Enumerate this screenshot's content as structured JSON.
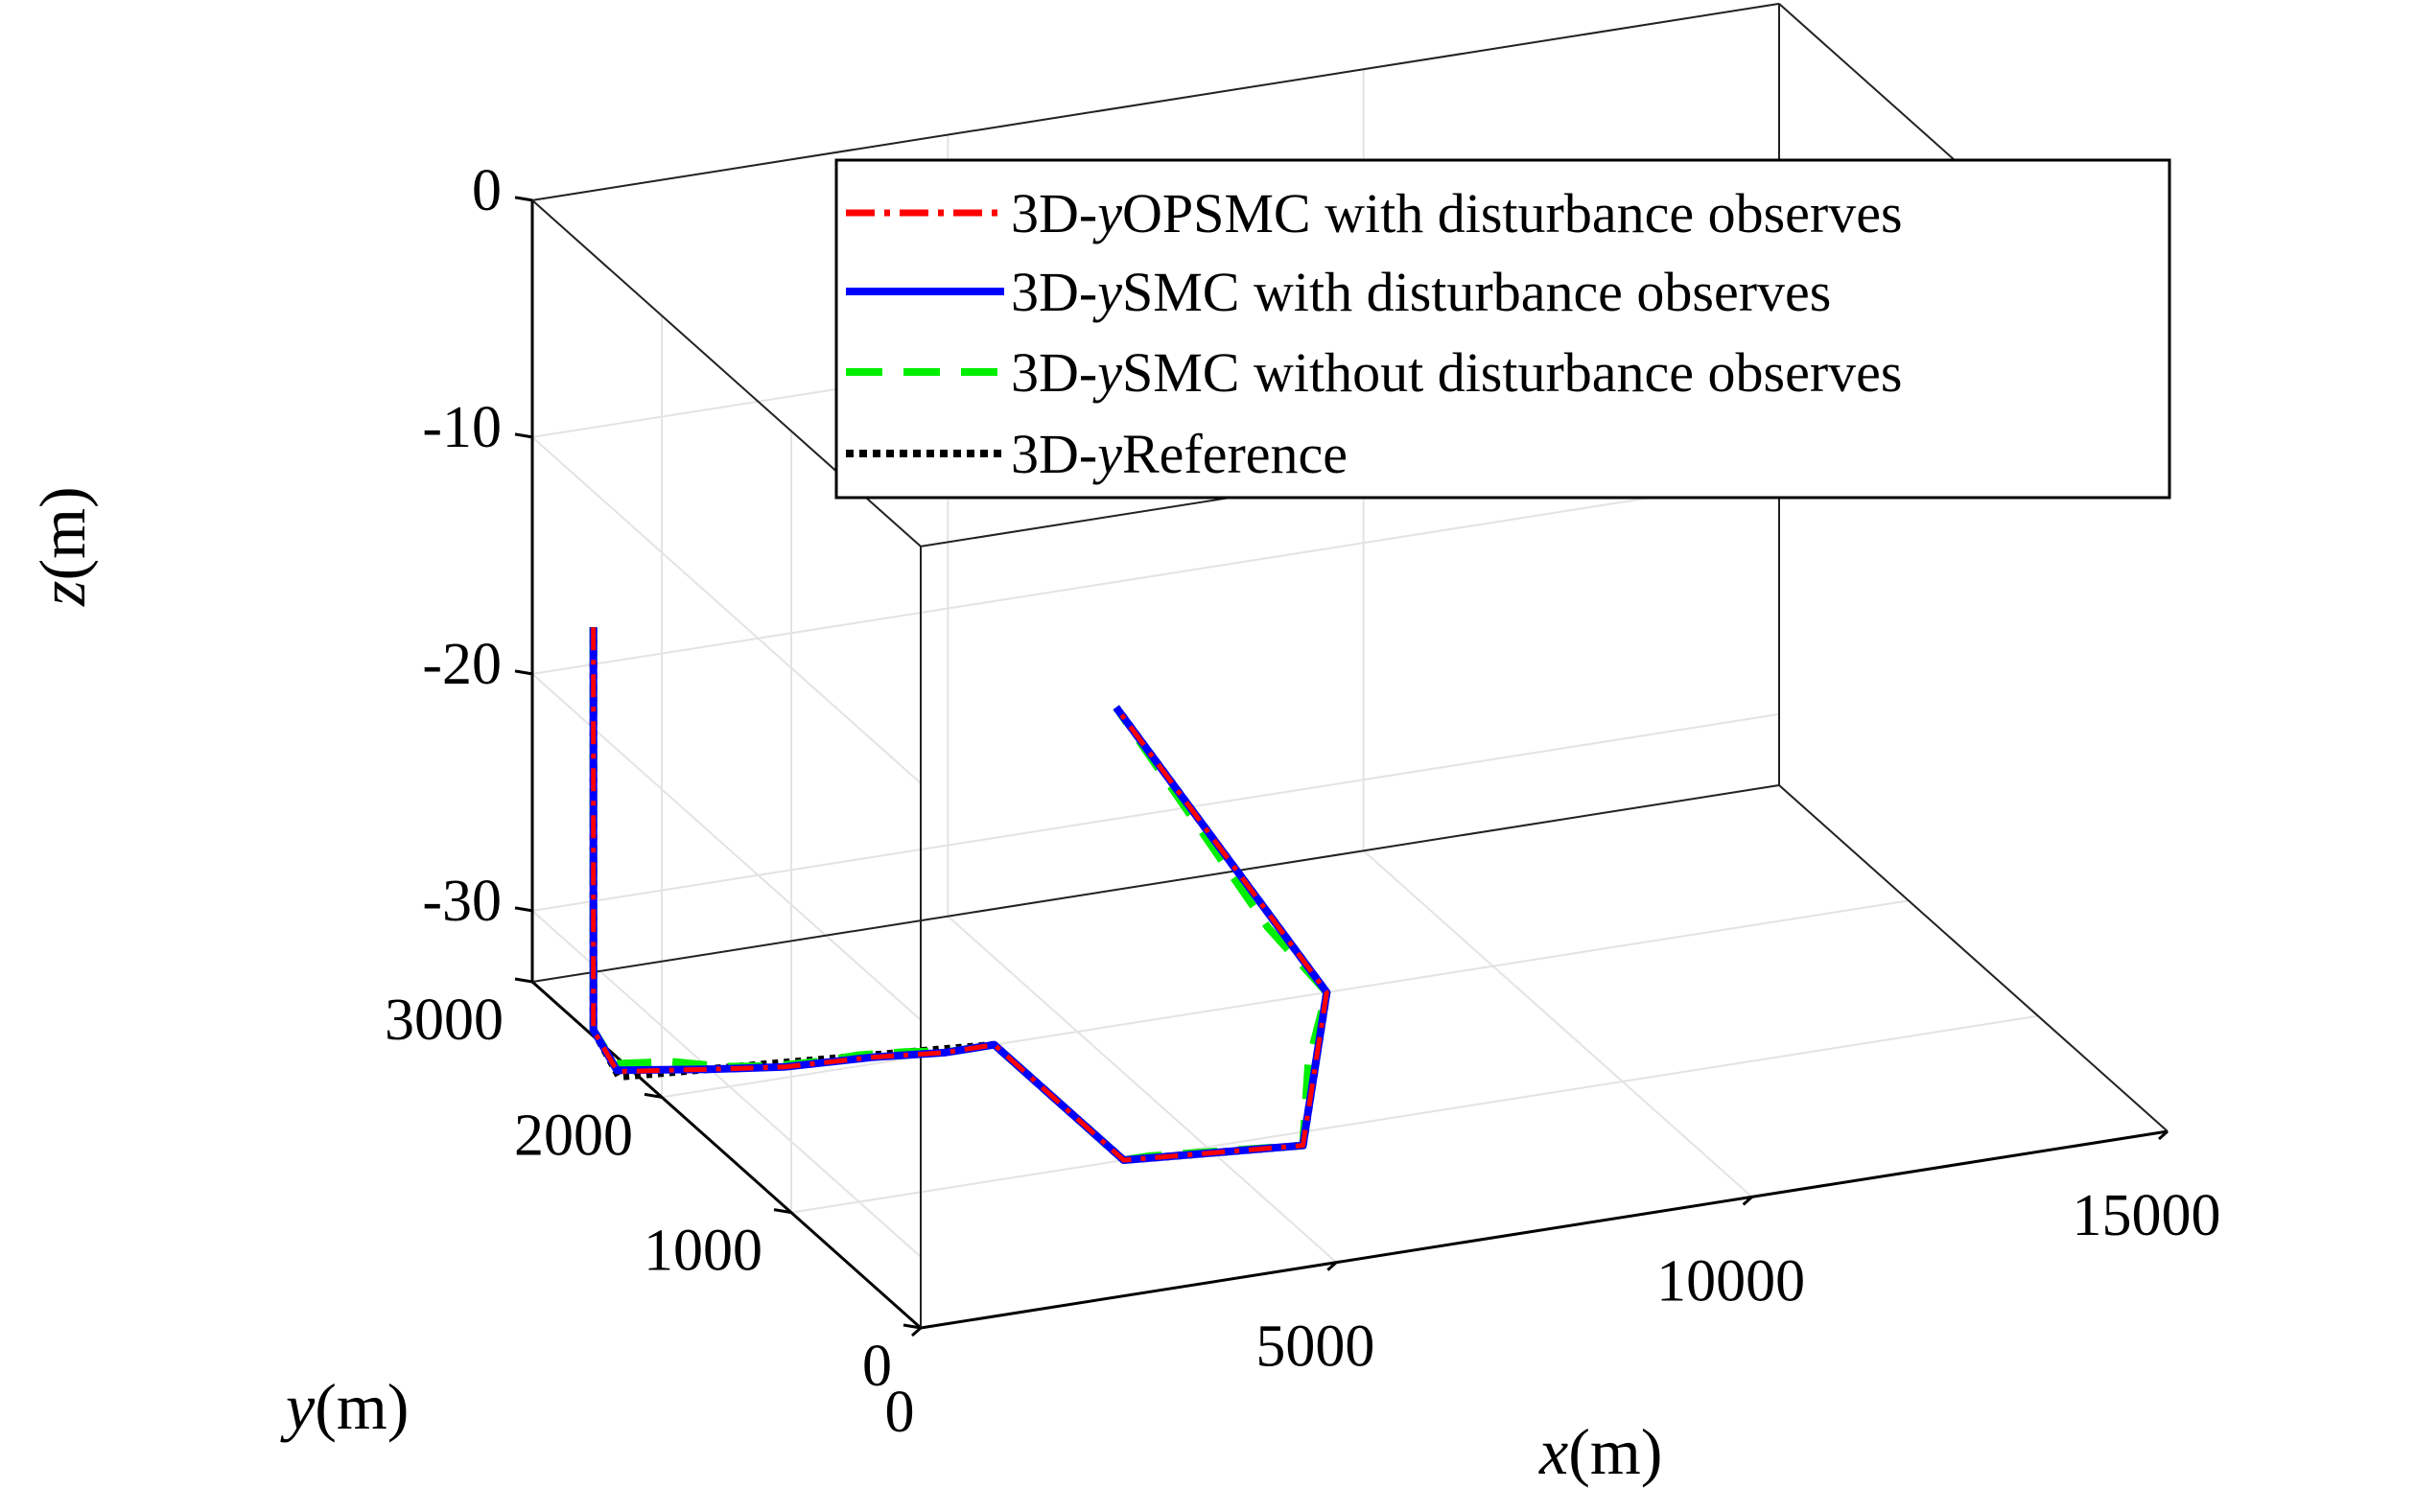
{
  "chart_data": {
    "type": "line3d",
    "view": "3D perspective, azimuth approx -37°, elevation approx 30°",
    "axes": {
      "x": {
        "label_var": "x",
        "label_unit": "(m)",
        "range": [
          0,
          15000
        ],
        "ticks": [
          0,
          5000,
          10000,
          15000
        ],
        "tick_labels": [
          "0",
          "5000",
          "10000",
          "15000"
        ]
      },
      "y": {
        "label_var": "y",
        "label_unit": "(m)",
        "range": [
          0,
          3000
        ],
        "ticks": [
          0,
          1000,
          2000,
          3000
        ],
        "tick_labels": [
          "0",
          "1000",
          "2000",
          "3000"
        ]
      },
      "z": {
        "label_var": "z",
        "label_unit": "(m)",
        "range": [
          -33,
          0
        ],
        "ticks": [
          0,
          -10,
          -20,
          -30
        ],
        "tick_labels": [
          "0",
          "-10",
          "-20",
          "-30"
        ]
      }
    },
    "grid": true,
    "box": true,
    "legend": {
      "location": "top-right",
      "entries": [
        {
          "prefix": "3D-",
          "var": "y",
          "suffix": "OPSMC with disturbance observes",
          "color": "#ff0000",
          "style": "dash-dot"
        },
        {
          "prefix": "3D-",
          "var": "y",
          "suffix": "SMC with disturbance observes",
          "color": "#0000ff",
          "style": "solid"
        },
        {
          "prefix": "3D-",
          "var": "y",
          "suffix": "SMC without disturbance observes",
          "color": "#00ee00",
          "style": "dashed"
        },
        {
          "prefix": "3D-",
          "var": "y",
          "suffix": "Reference",
          "color": "#000000",
          "style": "dotted"
        }
      ]
    },
    "series": [
      {
        "name": "3D-yReference",
        "color": "#000000",
        "points": [
          [
            -200,
            2400,
            -15
          ],
          [
            -200,
            2400,
            -32
          ],
          [
            -200,
            2200,
            -33
          ],
          [
            4000,
            2000,
            -33
          ],
          [
            4000,
            1000,
            -33
          ],
          [
            6000,
            900,
            -33
          ],
          [
            8000,
            2000,
            -33
          ],
          [
            6400,
            2600,
            -23
          ]
        ]
      },
      {
        "name": "3D-ySMC without disturbance observes",
        "color": "#00ee00",
        "points": [
          [
            -200,
            2400,
            -15
          ],
          [
            -200,
            2400,
            -32
          ],
          [
            -100,
            2300,
            -33
          ],
          [
            500,
            2250,
            -33
          ],
          [
            1000,
            2150,
            -33
          ],
          [
            1500,
            2100,
            -33
          ],
          [
            2000,
            2080,
            -33
          ],
          [
            2500,
            2080,
            -33
          ],
          [
            3000,
            2050,
            -33
          ],
          [
            3500,
            2000,
            -33
          ],
          [
            4000,
            2000,
            -33
          ],
          [
            4000,
            1000,
            -33
          ],
          [
            4300,
            1000,
            -33
          ],
          [
            6000,
            900,
            -33
          ],
          [
            7000,
            1500,
            -33
          ],
          [
            8000,
            2000,
            -33
          ],
          [
            7600,
            2200,
            -31
          ],
          [
            6700,
            2500,
            -25
          ],
          [
            6400,
            2600,
            -23
          ]
        ]
      },
      {
        "name": "3D-ySMC with disturbance observes",
        "color": "#0000ff",
        "points": [
          [
            -200,
            2400,
            -15
          ],
          [
            -200,
            2400,
            -32
          ],
          [
            -150,
            2250,
            -33
          ],
          [
            800,
            2150,
            -33
          ],
          [
            1600,
            2080,
            -33
          ],
          [
            2600,
            2050,
            -33
          ],
          [
            3400,
            2000,
            -33
          ],
          [
            4000,
            2000,
            -33
          ],
          [
            4000,
            1000,
            -33
          ],
          [
            6000,
            900,
            -33
          ],
          [
            8000,
            2000,
            -33
          ],
          [
            6400,
            2600,
            -23
          ]
        ]
      },
      {
        "name": "3D-yOPSMC with disturbance observes",
        "color": "#ff0000",
        "points": [
          [
            -200,
            2400,
            -15
          ],
          [
            -200,
            2400,
            -32
          ],
          [
            -160,
            2240,
            -33
          ],
          [
            800,
            2150,
            -33
          ],
          [
            1600,
            2080,
            -33
          ],
          [
            2600,
            2050,
            -33
          ],
          [
            3400,
            2000,
            -33
          ],
          [
            4000,
            2000,
            -33
          ],
          [
            4000,
            1000,
            -33
          ],
          [
            6000,
            900,
            -33
          ],
          [
            8000,
            2000,
            -33
          ],
          [
            6400,
            2600,
            -23
          ]
        ]
      }
    ]
  }
}
